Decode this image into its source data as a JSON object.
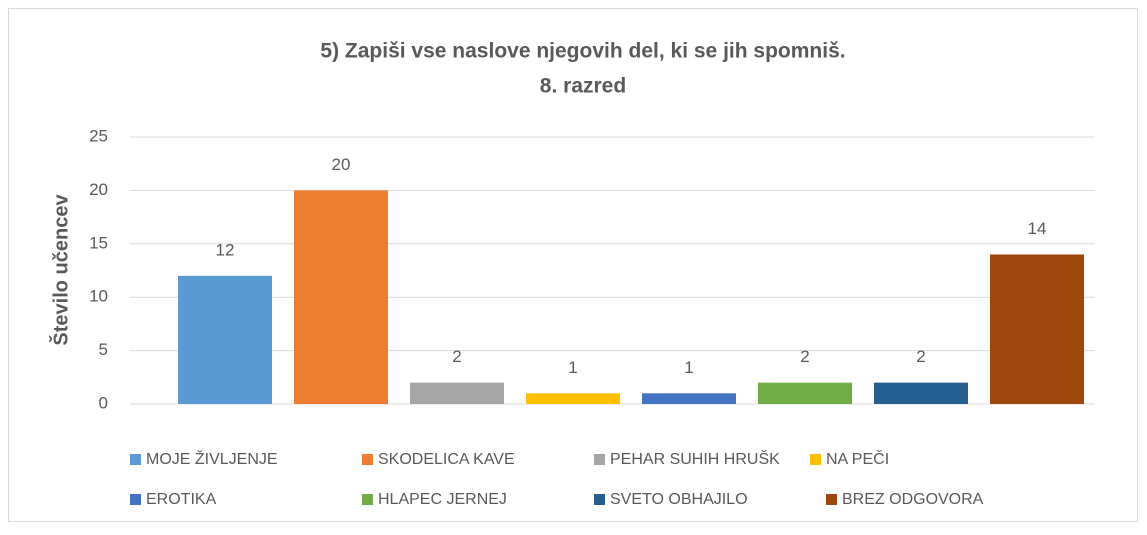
{
  "chart_data": {
    "type": "bar",
    "title": "5) Zapiši vse naslove njegovih del, ki se jih spomniš.",
    "subtitle": "8. razred",
    "y_label": "Število učencev",
    "series": [
      {
        "name": "MOJE ŽIVLJENJE",
        "color": "#5b9bd5",
        "values": [
          12
        ]
      },
      {
        "name": "SKODELICA KAVE",
        "color": "#ed7d31",
        "values": [
          20
        ]
      },
      {
        "name": "PEHAR SUHIH HRUŠK",
        "color": "#a5a5a5",
        "values": [
          2
        ]
      },
      {
        "name": "NA PEČI",
        "color": "#ffc000",
        "values": [
          1
        ]
      },
      {
        "name": "EROTIKA",
        "color": "#4472c4",
        "values": [
          1
        ]
      },
      {
        "name": "HLAPEC JERNEJ",
        "color": "#70ad47",
        "values": [
          2
        ]
      },
      {
        "name": "SVETO OBHAJILO",
        "color": "#255e91",
        "values": [
          2
        ]
      },
      {
        "name": "BREZ ODGOVORA",
        "color": "#9e480e",
        "values": [
          14
        ]
      }
    ],
    "ylim": [
      0,
      25
    ],
    "yticks": [
      0,
      5,
      10,
      15,
      20,
      25
    ],
    "grid": true,
    "legend": "bottom"
  }
}
